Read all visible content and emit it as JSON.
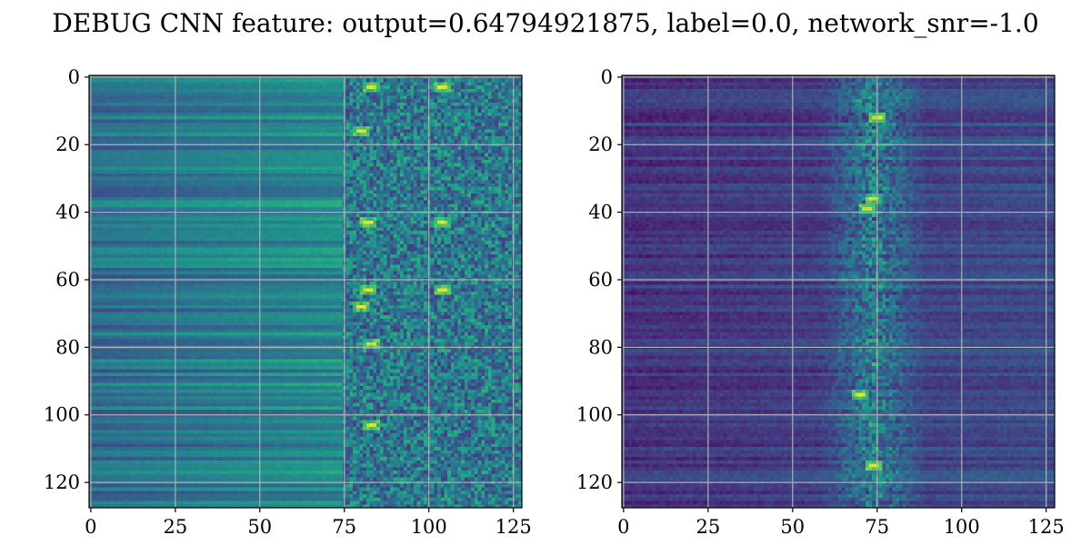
{
  "title": "DEBUG CNN feature: output=0.64794921875, label=0.0, network_snr=-1.0",
  "chart_data": [
    {
      "type": "heatmap",
      "colormap": "viridis",
      "rows": 128,
      "cols": 128,
      "xlim": [
        -0.5,
        127.5
      ],
      "ylim": [
        127.5,
        -0.5
      ],
      "grid": true,
      "x_ticks": [
        0,
        25,
        50,
        75,
        100,
        125
      ],
      "y_ticks": [
        0,
        20,
        40,
        60,
        80,
        100,
        120
      ],
      "x_tick_labels": [
        "0",
        "25",
        "50",
        "75",
        "100",
        "125"
      ],
      "y_tick_labels": [
        "0",
        "20",
        "40",
        "60",
        "80",
        "100",
        "120"
      ],
      "pattern": "left columns (0-74) show horizontal row-wise banding at mid intensity; columns 75-127 are noisy with bright spots",
      "bright_spots": [
        {
          "row": 3,
          "col": 83
        },
        {
          "row": 3,
          "col": 104
        },
        {
          "row": 16,
          "col": 80
        },
        {
          "row": 43,
          "col": 82
        },
        {
          "row": 43,
          "col": 104
        },
        {
          "row": 63,
          "col": 82
        },
        {
          "row": 63,
          "col": 104
        },
        {
          "row": 68,
          "col": 80
        },
        {
          "row": 79,
          "col": 83
        },
        {
          "row": 103,
          "col": 83
        }
      ]
    },
    {
      "type": "heatmap",
      "colormap": "viridis",
      "rows": 128,
      "cols": 128,
      "xlim": [
        -0.5,
        127.5
      ],
      "ylim": [
        127.5,
        -0.5
      ],
      "grid": true,
      "x_ticks": [
        0,
        25,
        50,
        75,
        100,
        125
      ],
      "y_ticks": [
        0,
        20,
        40,
        60,
        80,
        100,
        120
      ],
      "x_tick_labels": [
        "0",
        "25",
        "50",
        "75",
        "100",
        "125"
      ],
      "y_tick_labels": [
        "0",
        "20",
        "40",
        "60",
        "80",
        "100",
        "120"
      ],
      "pattern": "mostly dark purple; activity concentrated in a vertical band around columns 65-85",
      "bright_spots": [
        {
          "row": 36,
          "col": 74
        },
        {
          "row": 39,
          "col": 72
        },
        {
          "row": 12,
          "col": 75
        },
        {
          "row": 94,
          "col": 70
        },
        {
          "row": 115,
          "col": 74
        }
      ]
    }
  ]
}
